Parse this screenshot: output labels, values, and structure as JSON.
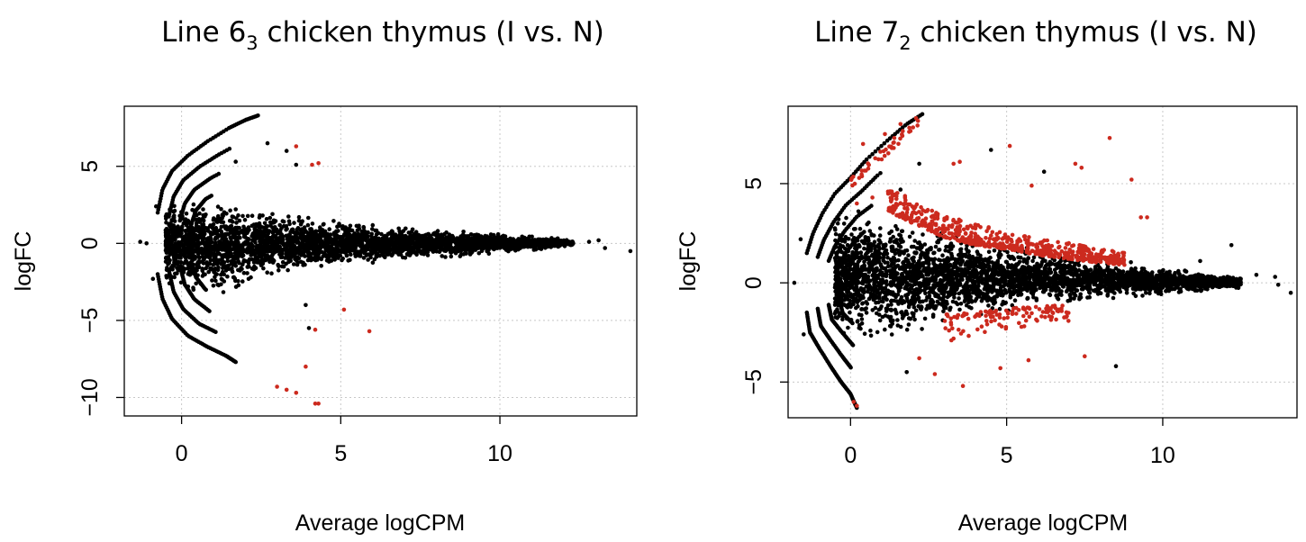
{
  "chart_data": [
    {
      "type": "scatter",
      "title": {
        "prefix": "Line 6",
        "sub": "3",
        "suffix": " chicken thymus (I vs. N)"
      },
      "xlabel": "Average logCPM",
      "ylabel": "logFC",
      "xlim": [
        -1.8,
        14.3
      ],
      "ylim": [
        -11.2,
        8.9
      ],
      "xticks": [
        0,
        5,
        10
      ],
      "yticks": [
        -10,
        -5,
        0,
        5
      ],
      "grid": true,
      "colors": {
        "not_significant": "#000000",
        "significant": "#cc2a1e"
      },
      "upper_arc": [
        [
          -0.75,
          2.0
        ],
        [
          -0.6,
          3.5
        ],
        [
          -0.3,
          4.7
        ],
        [
          0.2,
          5.7
        ],
        [
          0.8,
          6.6
        ],
        [
          1.5,
          7.5
        ],
        [
          2.0,
          8.0
        ],
        [
          2.4,
          8.3
        ]
      ],
      "lower_arc": [
        [
          -0.75,
          -2.0
        ],
        [
          -0.6,
          -3.6
        ],
        [
          -0.3,
          -4.9
        ],
        [
          0.2,
          -6.0
        ],
        [
          0.8,
          -6.7
        ],
        [
          1.4,
          -7.3
        ],
        [
          1.7,
          -7.7
        ]
      ],
      "cloud_envelope": [
        [
          -0.5,
          3.0,
          -3.0
        ],
        [
          0.5,
          3.3,
          -3.7
        ],
        [
          1.5,
          3.0,
          -3.5
        ],
        [
          2.5,
          2.4,
          -2.5
        ],
        [
          4.0,
          1.9,
          -1.9
        ],
        [
          6.0,
          1.4,
          -1.4
        ],
        [
          8.0,
          1.0,
          -1.0
        ],
        [
          10.0,
          0.7,
          -0.7
        ],
        [
          11.5,
          0.45,
          -0.4
        ],
        [
          12.3,
          0.2,
          -0.2
        ]
      ],
      "black_outliers": [
        [
          -1.3,
          0.1
        ],
        [
          -1.1,
          0.0
        ],
        [
          -0.9,
          -2.3
        ],
        [
          -0.8,
          2.4
        ],
        [
          1.7,
          5.3
        ],
        [
          2.7,
          6.5
        ],
        [
          3.3,
          6.0
        ],
        [
          3.6,
          5.1
        ],
        [
          3.9,
          -4.0
        ],
        [
          4.0,
          -5.5
        ],
        [
          12.8,
          0.1
        ],
        [
          13.1,
          0.2
        ],
        [
          13.3,
          -0.3
        ],
        [
          14.1,
          -0.5
        ]
      ],
      "significant_points": [
        [
          3.6,
          6.3
        ],
        [
          4.1,
          5.1
        ],
        [
          4.3,
          5.2
        ],
        [
          4.2,
          -5.6
        ],
        [
          5.1,
          -4.3
        ],
        [
          5.9,
          -5.7
        ],
        [
          3.9,
          -8.0
        ],
        [
          3.0,
          -9.3
        ],
        [
          3.3,
          -9.5
        ],
        [
          3.6,
          -9.7
        ],
        [
          4.2,
          -10.4
        ],
        [
          4.3,
          -10.4
        ]
      ]
    },
    {
      "type": "scatter",
      "title": {
        "prefix": "Line 7",
        "sub": "2",
        "suffix": " chicken thymus (I vs. N)"
      },
      "xlabel": "Average logCPM",
      "ylabel": "logFC",
      "xlim": [
        -2.0,
        14.3
      ],
      "ylim": [
        -6.8,
        8.9
      ],
      "xticks": [
        0,
        5,
        10
      ],
      "yticks": [
        -5,
        0,
        5
      ],
      "grid": true,
      "colors": {
        "not_significant": "#000000",
        "significant": "#cc2a1e"
      },
      "upper_arc": [
        [
          -1.4,
          1.5
        ],
        [
          -1.2,
          2.5
        ],
        [
          -0.9,
          3.5
        ],
        [
          -0.5,
          4.5
        ],
        [
          0.0,
          5.3
        ],
        [
          0.5,
          6.2
        ],
        [
          1.2,
          7.2
        ],
        [
          1.8,
          8.0
        ],
        [
          2.3,
          8.5
        ]
      ],
      "lower_arc": [
        [
          -1.4,
          -1.5
        ],
        [
          -1.3,
          -2.5
        ],
        [
          -1.0,
          -3.3
        ],
        [
          -0.6,
          -4.3
        ],
        [
          -0.3,
          -5.0
        ],
        [
          0.0,
          -5.6
        ],
        [
          0.2,
          -6.3
        ]
      ],
      "cloud_envelope": [
        [
          -0.5,
          3.6,
          -2.6
        ],
        [
          0.5,
          4.0,
          -3.3
        ],
        [
          1.5,
          3.5,
          -3.0
        ],
        [
          2.5,
          3.0,
          -2.5
        ],
        [
          4.0,
          2.5,
          -1.9
        ],
        [
          6.0,
          1.8,
          -1.4
        ],
        [
          8.0,
          1.3,
          -1.0
        ],
        [
          10.0,
          0.8,
          -0.7
        ],
        [
          11.5,
          0.6,
          -0.5
        ],
        [
          12.5,
          0.3,
          -0.3
        ]
      ],
      "black_outliers": [
        [
          -1.8,
          0.0
        ],
        [
          -1.6,
          2.2
        ],
        [
          -1.5,
          -2.6
        ],
        [
          1.6,
          4.7
        ],
        [
          1.8,
          -4.5
        ],
        [
          2.2,
          6.0
        ],
        [
          4.5,
          6.7
        ],
        [
          6.2,
          5.6
        ],
        [
          8.5,
          -4.2
        ],
        [
          11.2,
          1.1
        ],
        [
          12.5,
          0.2
        ],
        [
          13.0,
          0.4
        ],
        [
          13.6,
          0.3
        ],
        [
          13.7,
          -0.1
        ],
        [
          14.1,
          -0.5
        ],
        [
          12.2,
          1.9
        ]
      ],
      "significant_points": [
        [
          0.4,
          7.0
        ],
        [
          1.1,
          7.5
        ],
        [
          1.6,
          8.0
        ],
        [
          2.1,
          8.3
        ],
        [
          3.3,
          6.0
        ],
        [
          3.5,
          6.1
        ],
        [
          5.1,
          6.9
        ],
        [
          7.2,
          6.0
        ],
        [
          7.4,
          5.8
        ],
        [
          8.3,
          7.3
        ],
        [
          9.0,
          5.2
        ],
        [
          5.8,
          4.9
        ],
        [
          9.3,
          3.3
        ],
        [
          9.5,
          3.3
        ],
        [
          3.6,
          -5.2
        ],
        [
          4.8,
          -4.3
        ],
        [
          5.7,
          -3.9
        ],
        [
          7.5,
          -3.7
        ],
        [
          2.7,
          -4.6
        ],
        [
          2.2,
          -3.8
        ],
        [
          0.1,
          -6.0
        ],
        [
          0.2,
          -6.2
        ]
      ],
      "red_band": {
        "upper_from": [
          [
            1.2,
            4.8
          ],
          [
            2.0,
            4.2
          ],
          [
            3.0,
            3.4
          ],
          [
            4.0,
            3.0
          ],
          [
            5.0,
            2.6
          ],
          [
            6.0,
            2.2
          ],
          [
            7.0,
            2.0
          ],
          [
            8.0,
            1.7
          ],
          [
            8.8,
            1.5
          ]
        ],
        "lower_from": [
          [
            1.2,
            3.6
          ],
          [
            2.0,
            3.0
          ],
          [
            3.0,
            2.3
          ],
          [
            4.0,
            1.9
          ],
          [
            5.0,
            1.7
          ],
          [
            6.0,
            1.4
          ],
          [
            7.0,
            1.2
          ],
          [
            8.0,
            1.0
          ],
          [
            8.8,
            0.9
          ]
        ],
        "down_from": [
          [
            3.0,
            -1.6
          ],
          [
            4.0,
            -1.5
          ],
          [
            5.0,
            -1.3
          ],
          [
            6.0,
            -1.2
          ],
          [
            7.0,
            -1.1
          ]
        ],
        "down_to": [
          [
            3.0,
            -3.0
          ],
          [
            4.0,
            -2.6
          ],
          [
            5.0,
            -2.4
          ],
          [
            6.0,
            -2.2
          ],
          [
            7.0,
            -2.0
          ]
        ]
      },
      "arc_sig_band": {
        "upper_from": [
          [
            0.0,
            5.3
          ],
          [
            0.5,
            6.0
          ],
          [
            1.0,
            6.7
          ],
          [
            1.6,
            7.6
          ],
          [
            2.2,
            8.4
          ]
        ],
        "lower_from": [
          [
            0.2,
            4.0
          ],
          [
            0.7,
            4.3
          ],
          [
            1.2,
            4.6
          ]
        ]
      }
    }
  ]
}
